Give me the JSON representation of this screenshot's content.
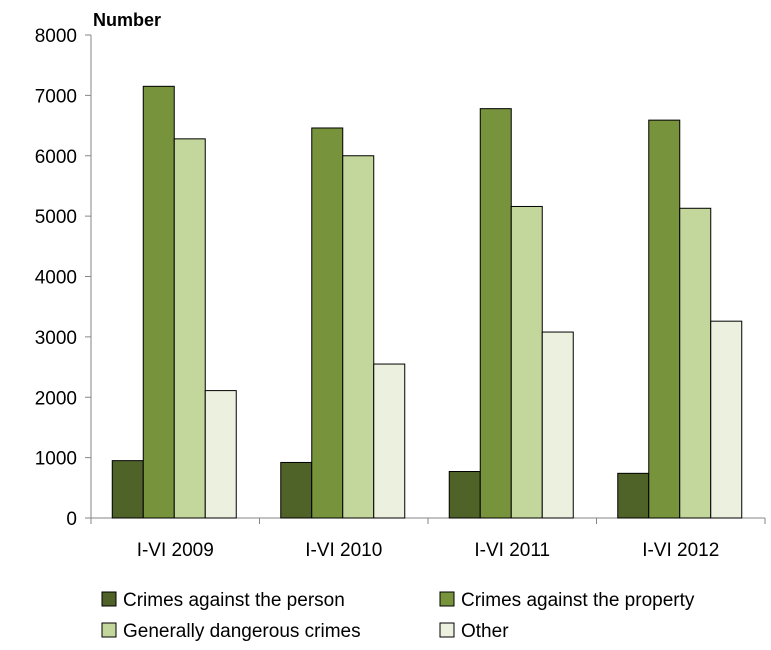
{
  "chart_data": {
    "type": "bar",
    "y_unit_label": "Number",
    "categories": [
      "I-VI 2009",
      "I-VI 2010",
      "I-VI 2011",
      "I-VI 2012"
    ],
    "ylim": [
      0,
      8000
    ],
    "yticks": [
      0,
      1000,
      2000,
      3000,
      4000,
      5000,
      6000,
      7000,
      8000
    ],
    "grid": false,
    "legend_position": "bottom",
    "series": [
      {
        "name": "Crimes against the person",
        "color": "#4f6228",
        "values": [
          950,
          920,
          770,
          740
        ]
      },
      {
        "name": "Crimes against the property",
        "color": "#77933c",
        "values": [
          7150,
          6460,
          6780,
          6590
        ]
      },
      {
        "name": "Generally dangerous crimes",
        "color": "#c3d69b",
        "values": [
          6280,
          6000,
          5160,
          5130
        ]
      },
      {
        "name": "Other",
        "color": "#ebf1de",
        "values": [
          2110,
          2550,
          3080,
          3260
        ]
      }
    ]
  }
}
